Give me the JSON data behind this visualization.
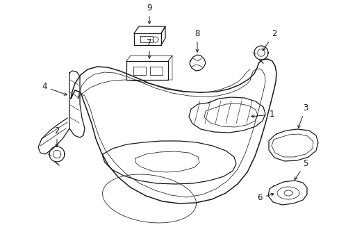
{
  "bg_color": "#ffffff",
  "lc": "#1a1a1a",
  "figsize": [
    4.89,
    3.6
  ],
  "dpi": 100,
  "lw": 0.9,
  "tlw": 0.55,
  "fs": 8.5
}
